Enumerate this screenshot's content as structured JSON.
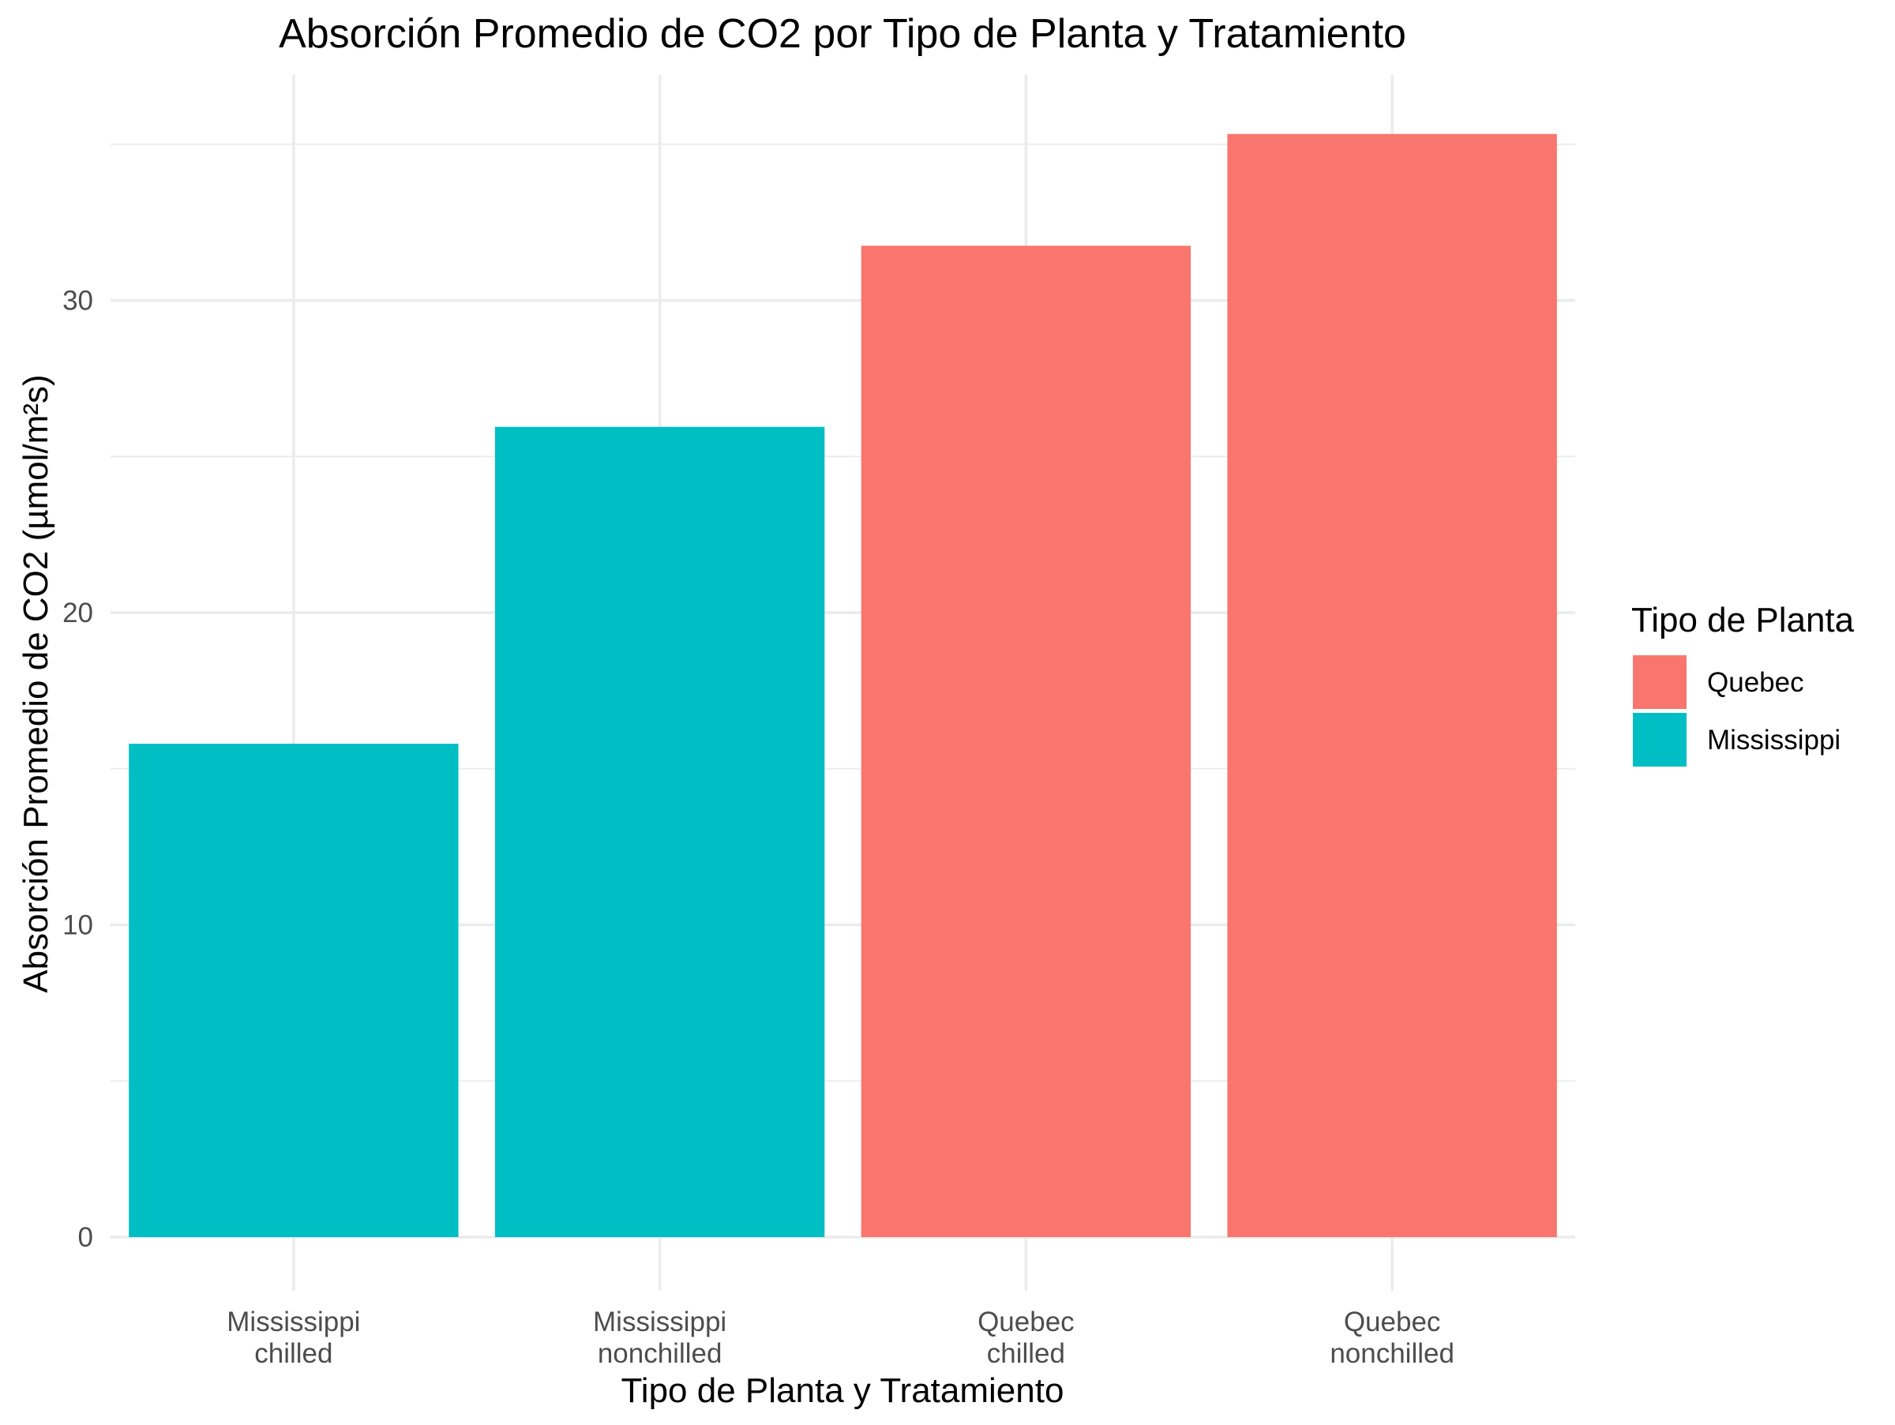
{
  "chart_data": {
    "type": "bar",
    "title": "Absorción Promedio de CO2 por Tipo de Planta y Tratamiento",
    "xlabel": "Tipo de Planta y Tratamiento",
    "ylabel": "Absorción Promedio de CO2 (µmol/m²s)",
    "categories": [
      [
        "Mississippi",
        "chilled"
      ],
      [
        "Mississippi",
        "nonchilled"
      ],
      [
        "Quebec",
        "chilled"
      ],
      [
        "Quebec",
        "nonchilled"
      ]
    ],
    "values": [
      15.8,
      25.95,
      31.75,
      35.33
    ],
    "groups": [
      "Mississippi",
      "Mississippi",
      "Quebec",
      "Quebec"
    ],
    "ylim": [
      0,
      37.0
    ],
    "yticks": [
      0,
      10,
      20,
      30
    ],
    "grid": true,
    "legend": {
      "title": "Tipo de Planta",
      "placement": "right",
      "entries": [
        {
          "name": "Quebec",
          "color": "#F8766D"
        },
        {
          "name": "Mississippi",
          "color": "#00BFC4"
        }
      ]
    },
    "colors": {
      "Quebec": "#F8766D",
      "Mississippi": "#00BFC4"
    }
  }
}
